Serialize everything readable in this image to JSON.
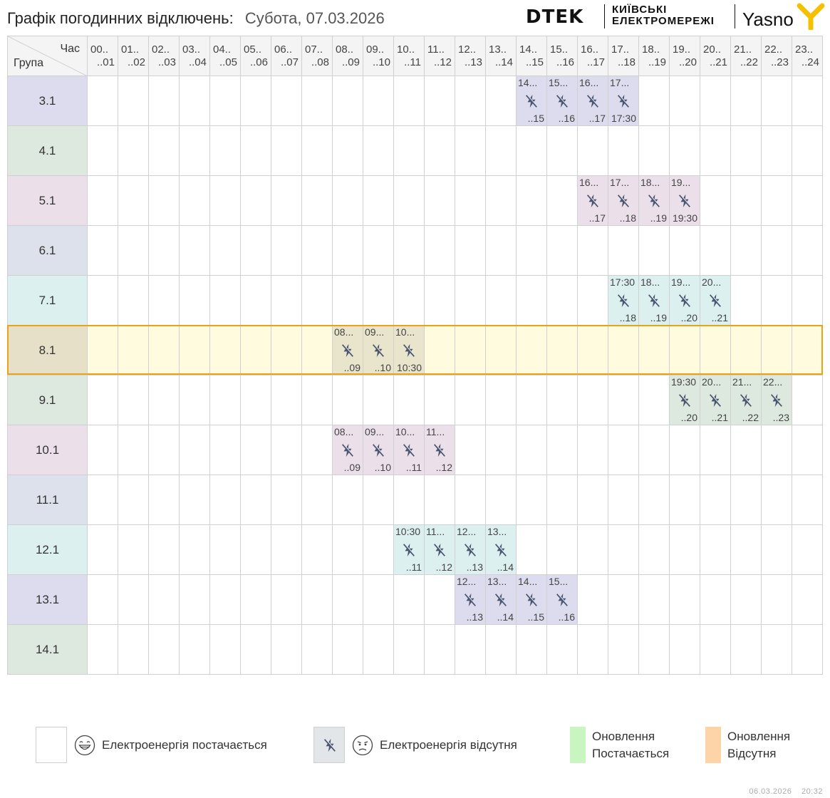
{
  "header": {
    "title": "Графік погодинних відключень:",
    "date": "Субота, 07.03.2026",
    "logo_dtek": "DTEK",
    "logo_kem_line1": "КИЇВСЬКІ",
    "logo_kem_line2": "ЕЛЕКТРОМЕРЕЖІ",
    "logo_yasno": "Yasno"
  },
  "table": {
    "corner_hour": "Час",
    "corner_group": "Група",
    "hours": [
      {
        "a": "00..",
        "b": "..01"
      },
      {
        "a": "01..",
        "b": "..02"
      },
      {
        "a": "02..",
        "b": "..03"
      },
      {
        "a": "03..",
        "b": "..04"
      },
      {
        "a": "04..",
        "b": "..05"
      },
      {
        "a": "05..",
        "b": "..06"
      },
      {
        "a": "06..",
        "b": "..07"
      },
      {
        "a": "07..",
        "b": "..08"
      },
      {
        "a": "08..",
        "b": "..09"
      },
      {
        "a": "09..",
        "b": "..10"
      },
      {
        "a": "10..",
        "b": "..11"
      },
      {
        "a": "11..",
        "b": "..12"
      },
      {
        "a": "12..",
        "b": "..13"
      },
      {
        "a": "13..",
        "b": "..14"
      },
      {
        "a": "14..",
        "b": "..15"
      },
      {
        "a": "15..",
        "b": "..16"
      },
      {
        "a": "16..",
        "b": "..17"
      },
      {
        "a": "17..",
        "b": "..18"
      },
      {
        "a": "18..",
        "b": "..19"
      },
      {
        "a": "19..",
        "b": "..20"
      },
      {
        "a": "20..",
        "b": "..21"
      },
      {
        "a": "21..",
        "b": "..22"
      },
      {
        "a": "22..",
        "b": "..23"
      },
      {
        "a": "23..",
        "b": "..24"
      }
    ],
    "groups": [
      {
        "name": "3.1",
        "color": "#dcdcee",
        "off": [
          {
            "h": 14,
            "t1": "14...",
            "t2": "..15"
          },
          {
            "h": 15,
            "t1": "15...",
            "t2": "..16"
          },
          {
            "h": 16,
            "t1": "16...",
            "t2": "..17"
          },
          {
            "h": 17,
            "t1": "17...",
            "t2": "17:30"
          }
        ]
      },
      {
        "name": "4.1",
        "color": "#dde8df",
        "off": []
      },
      {
        "name": "5.1",
        "color": "#ebe0ea",
        "off": [
          {
            "h": 16,
            "t1": "16...",
            "t2": "..17"
          },
          {
            "h": 17,
            "t1": "17...",
            "t2": "..18"
          },
          {
            "h": 18,
            "t1": "18...",
            "t2": "..19"
          },
          {
            "h": 19,
            "t1": "19...",
            "t2": "19:30"
          }
        ]
      },
      {
        "name": "6.1",
        "color": "#dde1ec",
        "off": []
      },
      {
        "name": "7.1",
        "color": "#dcf0ef",
        "off": [
          {
            "h": 17,
            "t1": "17:30",
            "t2": "..18"
          },
          {
            "h": 18,
            "t1": "18...",
            "t2": "..19"
          },
          {
            "h": 19,
            "t1": "19...",
            "t2": "..20"
          },
          {
            "h": 20,
            "t1": "20...",
            "t2": "..21"
          }
        ]
      },
      {
        "name": "8.1",
        "color": "#e6e0c8",
        "selected": true,
        "off": [
          {
            "h": 8,
            "t1": "08...",
            "t2": "..09"
          },
          {
            "h": 9,
            "t1": "09...",
            "t2": "..10"
          },
          {
            "h": 10,
            "t1": "10...",
            "t2": "10:30"
          }
        ]
      },
      {
        "name": "9.1",
        "color": "#dde8df",
        "off": [
          {
            "h": 19,
            "t1": "19:30",
            "t2": "..20"
          },
          {
            "h": 20,
            "t1": "20...",
            "t2": "..21"
          },
          {
            "h": 21,
            "t1": "21...",
            "t2": "..22"
          },
          {
            "h": 22,
            "t1": "22...",
            "t2": "..23"
          }
        ]
      },
      {
        "name": "10.1",
        "color": "#ebe0ea",
        "off": [
          {
            "h": 8,
            "t1": "08...",
            "t2": "..09"
          },
          {
            "h": 9,
            "t1": "09...",
            "t2": "..10"
          },
          {
            "h": 10,
            "t1": "10...",
            "t2": "..11"
          },
          {
            "h": 11,
            "t1": "11...",
            "t2": "..12"
          }
        ]
      },
      {
        "name": "11.1",
        "color": "#dde1ec",
        "off": []
      },
      {
        "name": "12.1",
        "color": "#dcf0ef",
        "off": [
          {
            "h": 10,
            "t1": "10:30",
            "t2": "..11"
          },
          {
            "h": 11,
            "t1": "11...",
            "t2": "..12"
          },
          {
            "h": 12,
            "t1": "12...",
            "t2": "..13"
          },
          {
            "h": 13,
            "t1": "13...",
            "t2": "..14"
          }
        ]
      },
      {
        "name": "13.1",
        "color": "#dcdcee",
        "off": [
          {
            "h": 12,
            "t1": "12...",
            "t2": "..13"
          },
          {
            "h": 13,
            "t1": "13...",
            "t2": "..14"
          },
          {
            "h": 14,
            "t1": "14...",
            "t2": "..15"
          },
          {
            "h": 15,
            "t1": "15...",
            "t2": "..16"
          }
        ]
      },
      {
        "name": "14.1",
        "color": "#dde8df",
        "off": []
      }
    ]
  },
  "legend": {
    "on_label": "Електроенергія постачається",
    "off_label": "Електроенергія відсутня",
    "upd_on_line1": "Оновлення",
    "upd_on_line2": "Постачається",
    "upd_off_line1": "Оновлення",
    "upd_off_line2": "Відсутня",
    "upd_on_color": "#c8f5c0",
    "upd_off_color": "#fdd4a8"
  },
  "footer": {
    "date": "06.03.2026",
    "time": "20:32"
  },
  "colors": {
    "selected_row_bg": "#fffbdf",
    "selected_row_border": "#e8a317",
    "off_icon_color": "#4a5570"
  }
}
